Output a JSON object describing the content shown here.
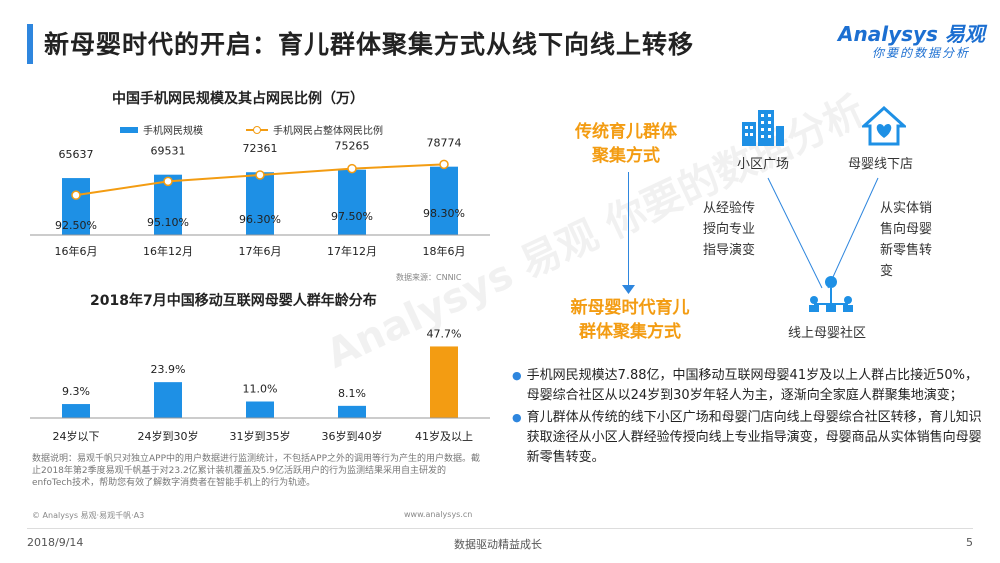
{
  "header": {
    "title": "新母婴时代的开启：育儿群体聚集方式从线下向线上转移",
    "logo": "Analysys 易观",
    "logo_slogan": "你要的数据分析"
  },
  "watermark": "Analysys 易观 你要的数据分析",
  "chart_data": [
    {
      "type": "bar",
      "title": "中国手机网民规模及其占网民比例（万）",
      "categories": [
        "16年6月",
        "16年12月",
        "17年6月",
        "17年12月",
        "18年6月"
      ],
      "series": [
        {
          "name": "手机网民规模",
          "values": [
            65637,
            69531,
            72361,
            75265,
            78774
          ],
          "labels": [
            "65637",
            "69531",
            "72361",
            "75265",
            "78774"
          ]
        },
        {
          "name": "手机网民占整体网民比例",
          "type": "line",
          "values": [
            92.5,
            95.1,
            96.3,
            97.5,
            98.3
          ],
          "labels": [
            "92.50%",
            "95.10%",
            "96.30%",
            "97.50%",
            "98.30%"
          ]
        }
      ],
      "colors": {
        "bar": "#1e90e5",
        "line": "#f39c12"
      },
      "legend": "top",
      "grid": false
    },
    {
      "type": "bar",
      "title": "2018年7月中国移动互联网母婴人群年龄分布",
      "categories": [
        "24岁以下",
        "24岁到30岁",
        "31岁到35岁",
        "36岁到40岁",
        "41岁及以上"
      ],
      "values": [
        9.3,
        23.9,
        11.0,
        8.1,
        47.7
      ],
      "labels": [
        "9.3%",
        "23.9%",
        "11.0%",
        "8.1%",
        "47.7%"
      ],
      "colors": {
        "bar": "#1e90e5",
        "highlight": "#f39c12"
      },
      "grid": false
    }
  ],
  "source": "数据来源：CNNIC",
  "note": "数据说明：易观千帆只对独立APP中的用户数据进行监测统计，不包括APP之外的调用等行为产生的用户数据。截止2018年第2季度易观千帆基于对23.2亿累计装机覆盖及5.9亿活跃用户的行为监测结果采用自主研发的enfoTech技术，帮助您有效了解数字消费者在智能手机上的行为轨迹。",
  "copyright": "© Analysys 易观·易观千帆·A3",
  "site": "www.analysys.cn",
  "diagram": {
    "traditional": [
      "传统育儿群体",
      "聚集方式"
    ],
    "new_era": [
      "新母婴时代育儿",
      "群体聚集方式"
    ],
    "node_community": "小区广场",
    "node_store": "母婴线下店",
    "node_online": "线上母婴社区",
    "left_text": [
      "从经验传",
      "授向专业",
      "指导演变"
    ],
    "right_text": [
      "从实体销",
      "售向母婴",
      "新零售转",
      "变"
    ],
    "icons": [
      "building-icon",
      "house-heart-icon",
      "community-network-icon"
    ],
    "accent_color": "#f39c12",
    "line_color": "#2e86de"
  },
  "bullets": [
    "手机网民规模达7.88亿，中国移动互联网母婴41岁及以上人群占比接近50%，母婴综合社区从以24岁到30岁年轻人为主，逐渐向全家庭人群聚集地演变；",
    "育儿群体从传统的线下小区广场和母婴门店向线上母婴综合社区转移，育儿知识获取途径从小区人群经验传授向线上专业指导演变，母婴商品从实体销售向母婴新零售转变。"
  ],
  "footer": {
    "date": "2018/9/14",
    "slogan": "数据驱动精益成长",
    "page": "5"
  }
}
